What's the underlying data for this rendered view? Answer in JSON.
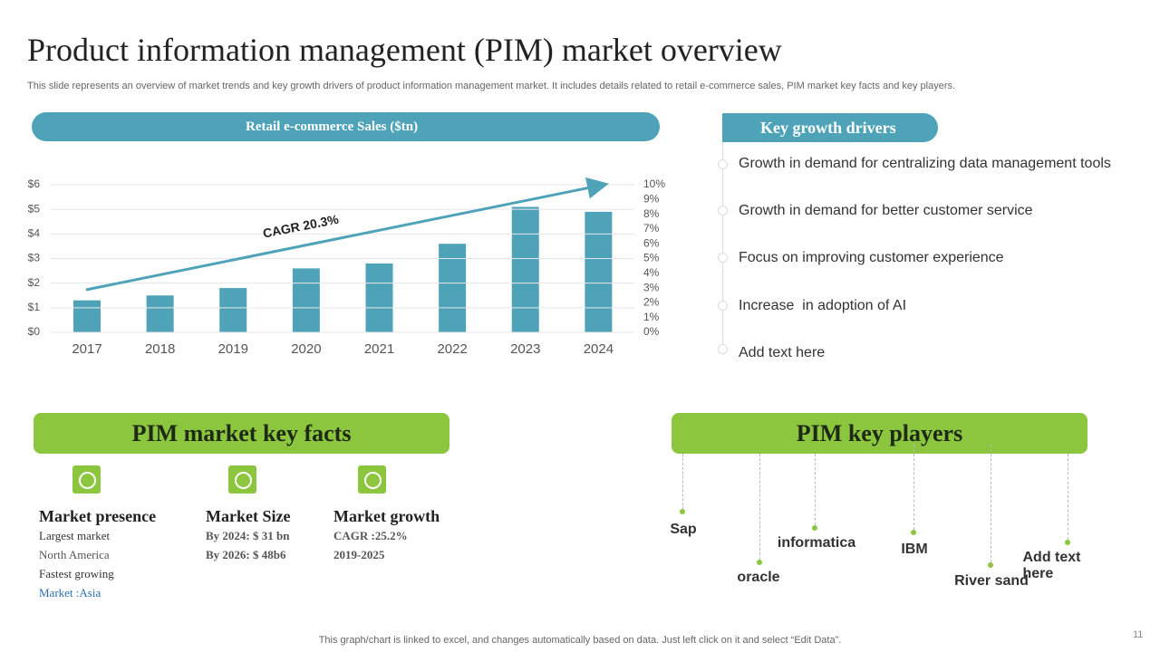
{
  "title": "Product information management (PIM) market overview",
  "subtitle": "This slide represents an overview of market trends and key growth drivers of product information management market. It includes details related to retail e-commerce sales, PIM market key facts and key players.",
  "chart_data": {
    "type": "bar",
    "title": "Retail e-commerce Sales ($tn)",
    "categories": [
      "2017",
      "2018",
      "2019",
      "2020",
      "2021",
      "2022",
      "2023",
      "2024"
    ],
    "values": [
      1.3,
      1.5,
      1.8,
      2.6,
      2.8,
      3.6,
      5.1,
      4.9
    ],
    "color": "#4ea3b8",
    "ylim": [
      0,
      6
    ],
    "yticks": [
      {
        "value": 0,
        "label": "$0"
      },
      {
        "value": 1,
        "label": "$1"
      },
      {
        "value": 2,
        "label": "$2"
      },
      {
        "value": 3,
        "label": "$3"
      },
      {
        "value": 4,
        "label": "$4"
      },
      {
        "value": 5,
        "label": "$5"
      },
      {
        "value": 6,
        "label": "$6"
      }
    ],
    "y2lim": [
      0,
      10
    ],
    "y2ticks": [
      {
        "value": 0,
        "label": "0%"
      },
      {
        "value": 1,
        "label": "1%"
      },
      {
        "value": 2,
        "label": "2%"
      },
      {
        "value": 3,
        "label": "3%"
      },
      {
        "value": 4,
        "label": "4%"
      },
      {
        "value": 5,
        "label": "5%"
      },
      {
        "value": 6,
        "label": "6%"
      },
      {
        "value": 7,
        "label": "7%"
      },
      {
        "value": 8,
        "label": "8%"
      },
      {
        "value": 9,
        "label": "9%"
      },
      {
        "value": 10,
        "label": "10%"
      }
    ],
    "grid": true,
    "annotation": "CAGR 20.3%"
  },
  "growth_drivers": {
    "title": "Key growth drivers",
    "items": [
      "Growth in demand for centralizing data management tools",
      "Growth in demand for better customer service",
      "Focus on improving customer experience",
      "Increase  in adoption of AI",
      "Add text here"
    ]
  },
  "key_facts": {
    "title": "PIM market key facts",
    "items": [
      {
        "heading": "Market presence",
        "lines": [
          "Largest market",
          "North America",
          "Fastest growing",
          "Market :Asia"
        ]
      },
      {
        "heading": "Market Size",
        "lines": [
          "By 2024: $ 31 bn",
          "By 2026: $ 48b6"
        ]
      },
      {
        "heading": "Market growth",
        "lines": [
          "CAGR :25.2%",
          "2019-2025"
        ]
      }
    ]
  },
  "key_players": {
    "title": "PIM key players",
    "items": [
      "Sap",
      "oracle",
      "informatica",
      "IBM",
      "River sand",
      "Add text here"
    ]
  },
  "footer": "This graph/chart is linked to excel,  and changes automatically based on data. Just left click on it and select “Edit Data”.",
  "page_number": "11"
}
